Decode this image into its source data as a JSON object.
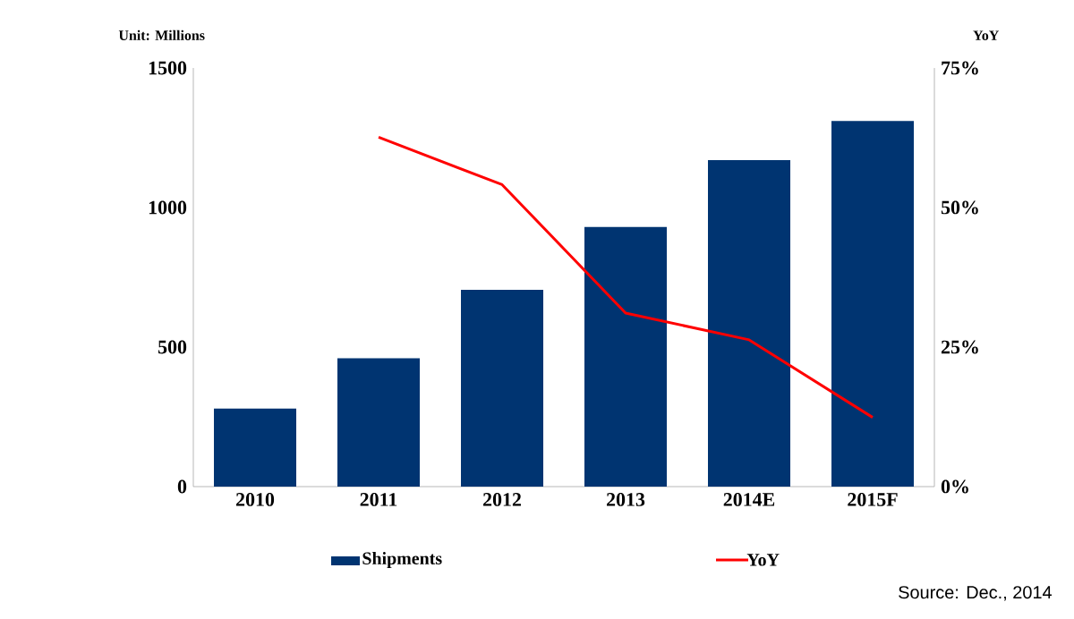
{
  "chart_data": {
    "type": "bar",
    "ylabel": "Unit: Millions",
    "y2label": "YoY",
    "categories": [
      "2010",
      "2011",
      "2012",
      "2013",
      "2014E",
      "2015F"
    ],
    "series": [
      {
        "name": "Shipments",
        "color": "#003471",
        "values": [
          280,
          460,
          705,
          930,
          1170,
          1310
        ]
      },
      {
        "name": "YoY",
        "type": "line",
        "axis": "y2",
        "color": "#ff0000",
        "values": [
          null,
          62.6,
          54.1,
          31.1,
          26.3,
          12.4
        ]
      }
    ],
    "ylim": [
      0,
      1500
    ],
    "yticks": [
      0,
      500,
      1000,
      1500
    ],
    "y2lim": [
      0,
      75
    ],
    "y2ticks": [
      {
        "value": 0,
        "label": "0%"
      },
      {
        "value": 25,
        "label": "25%"
      },
      {
        "value": 50,
        "label": "50%"
      },
      {
        "value": 75,
        "label": "75%"
      }
    ],
    "legend": "bottom",
    "grid": false,
    "marker": "none",
    "annotations": [
      "Source: Dec., 2014"
    ]
  }
}
